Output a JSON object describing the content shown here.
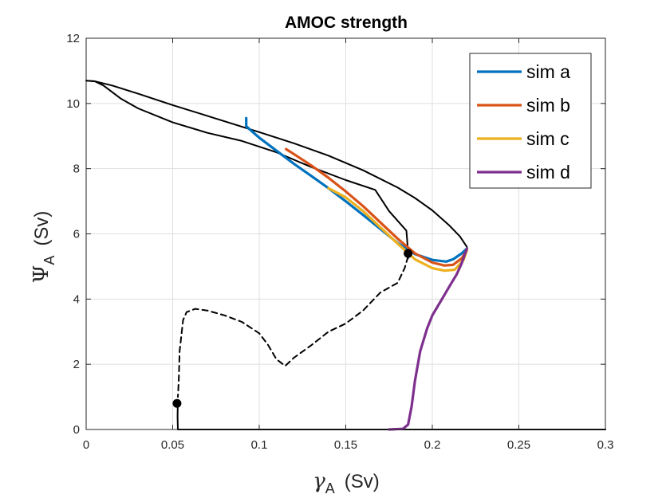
{
  "chart_data": {
    "type": "line",
    "title": "AMOC strength",
    "xlabel": {
      "symbol": "γ",
      "sub": "A",
      "unit": "(Sv)"
    },
    "ylabel": {
      "symbol": "Ψ",
      "sub": "A",
      "unit": "(Sv)"
    },
    "xlim": [
      0,
      0.3
    ],
    "ylim": [
      0,
      12
    ],
    "xticks": [
      0,
      0.05,
      0.1,
      0.15,
      0.2,
      0.25,
      0.3
    ],
    "xtick_labels": [
      "0",
      "0.05",
      "0.1",
      "0.15",
      "0.2",
      "0.25",
      "0.3"
    ],
    "yticks": [
      0,
      2,
      4,
      6,
      8,
      10,
      12
    ],
    "ytick_labels": [
      "0",
      "2",
      "4",
      "6",
      "8",
      "10",
      "12"
    ],
    "grid": true,
    "legend_position": "top-right",
    "series": [
      {
        "name": "sim a",
        "color": "#0072BD",
        "points": [
          [
            0.0925,
            9.55
          ],
          [
            0.0925,
            9.3
          ],
          [
            0.1,
            8.95
          ],
          [
            0.11,
            8.55
          ],
          [
            0.12,
            8.15
          ],
          [
            0.13,
            7.78
          ],
          [
            0.14,
            7.4
          ],
          [
            0.15,
            7.0
          ],
          [
            0.16,
            6.58
          ],
          [
            0.17,
            6.15
          ],
          [
            0.18,
            5.72
          ],
          [
            0.19,
            5.38
          ],
          [
            0.2,
            5.2
          ],
          [
            0.208,
            5.15
          ],
          [
            0.212,
            5.22
          ],
          [
            0.217,
            5.4
          ],
          [
            0.22,
            5.55
          ]
        ]
      },
      {
        "name": "sim b",
        "color": "#D95319",
        "points": [
          [
            0.1155,
            8.6
          ],
          [
            0.12,
            8.45
          ],
          [
            0.13,
            8.1
          ],
          [
            0.14,
            7.72
          ],
          [
            0.15,
            7.3
          ],
          [
            0.16,
            6.85
          ],
          [
            0.17,
            6.35
          ],
          [
            0.18,
            5.85
          ],
          [
            0.19,
            5.4
          ],
          [
            0.2,
            5.12
          ],
          [
            0.207,
            5.03
          ],
          [
            0.212,
            5.05
          ],
          [
            0.217,
            5.25
          ],
          [
            0.22,
            5.5
          ]
        ]
      },
      {
        "name": "sim c",
        "color": "#EDB120",
        "points": [
          [
            0.14,
            7.4
          ],
          [
            0.15,
            7.12
          ],
          [
            0.16,
            6.7
          ],
          [
            0.17,
            6.2
          ],
          [
            0.18,
            5.7
          ],
          [
            0.19,
            5.22
          ],
          [
            0.2,
            4.95
          ],
          [
            0.207,
            4.87
          ],
          [
            0.213,
            4.9
          ],
          [
            0.218,
            5.2
          ],
          [
            0.22,
            5.5
          ]
        ]
      },
      {
        "name": "sim d",
        "color": "#7E2F8E",
        "points": [
          [
            0.175,
            0
          ],
          [
            0.183,
            0.02
          ],
          [
            0.186,
            0.15
          ],
          [
            0.188,
            0.7
          ],
          [
            0.19,
            1.5
          ],
          [
            0.193,
            2.4
          ],
          [
            0.197,
            3.1
          ],
          [
            0.2,
            3.5
          ],
          [
            0.205,
            3.95
          ],
          [
            0.21,
            4.4
          ],
          [
            0.214,
            4.75
          ],
          [
            0.217,
            5.1
          ],
          [
            0.219,
            5.4
          ],
          [
            0.22,
            5.55
          ]
        ]
      }
    ],
    "reference_lines": [
      {
        "style": "solid",
        "color": "#000000",
        "points": [
          [
            0,
            10.7
          ],
          [
            0.005,
            10.68
          ],
          [
            0.015,
            10.55
          ],
          [
            0.03,
            10.3
          ],
          [
            0.05,
            9.95
          ],
          [
            0.07,
            9.62
          ],
          [
            0.1,
            9.12
          ],
          [
            0.12,
            8.78
          ],
          [
            0.14,
            8.4
          ],
          [
            0.16,
            7.95
          ],
          [
            0.18,
            7.42
          ],
          [
            0.19,
            7.1
          ],
          [
            0.2,
            6.72
          ],
          [
            0.21,
            6.25
          ],
          [
            0.216,
            5.92
          ],
          [
            0.22,
            5.6
          ]
        ]
      },
      {
        "style": "solid",
        "color": "#000000",
        "points": [
          [
            0,
            10.7
          ],
          [
            0.005,
            10.68
          ],
          [
            0.01,
            10.55
          ],
          [
            0.02,
            10.15
          ],
          [
            0.03,
            9.85
          ],
          [
            0.05,
            9.42
          ],
          [
            0.07,
            9.1
          ],
          [
            0.09,
            8.85
          ],
          [
            0.11,
            8.5
          ],
          [
            0.13,
            8.05
          ],
          [
            0.15,
            7.65
          ],
          [
            0.167,
            7.35
          ],
          [
            0.175,
            6.7
          ],
          [
            0.185,
            6.1
          ],
          [
            0.1855,
            5.8
          ],
          [
            0.186,
            5.4
          ],
          [
            0.186,
            5.25
          ]
        ]
      },
      {
        "style": "dashed",
        "color": "#000000",
        "points": [
          [
            0.186,
            5.3
          ],
          [
            0.184,
            4.95
          ],
          [
            0.18,
            4.5
          ],
          [
            0.17,
            4.2
          ],
          [
            0.16,
            3.65
          ],
          [
            0.15,
            3.25
          ],
          [
            0.14,
            3.0
          ],
          [
            0.13,
            2.58
          ],
          [
            0.12,
            2.2
          ],
          [
            0.115,
            1.95
          ],
          [
            0.11,
            2.15
          ],
          [
            0.105,
            2.6
          ],
          [
            0.1,
            2.95
          ],
          [
            0.09,
            3.3
          ],
          [
            0.08,
            3.5
          ],
          [
            0.07,
            3.65
          ],
          [
            0.063,
            3.7
          ],
          [
            0.058,
            3.6
          ],
          [
            0.056,
            3.35
          ],
          [
            0.054,
            2.4
          ],
          [
            0.0535,
            1.5
          ],
          [
            0.053,
            1.0
          ]
        ]
      },
      {
        "style": "solid",
        "color": "#000000",
        "points": [
          [
            0.053,
            0.9
          ],
          [
            0.0528,
            0.4
          ],
          [
            0.053,
            0
          ],
          [
            0.3,
            0
          ]
        ]
      },
      {
        "style": "solid",
        "color": "#000000",
        "points": [
          [
            0.175,
            0
          ],
          [
            0.3,
            0
          ]
        ]
      }
    ],
    "markers": [
      {
        "x": 0.0525,
        "y": 0.8,
        "color": "#000000"
      },
      {
        "x": 0.186,
        "y": 5.4,
        "color": "#000000"
      }
    ]
  }
}
